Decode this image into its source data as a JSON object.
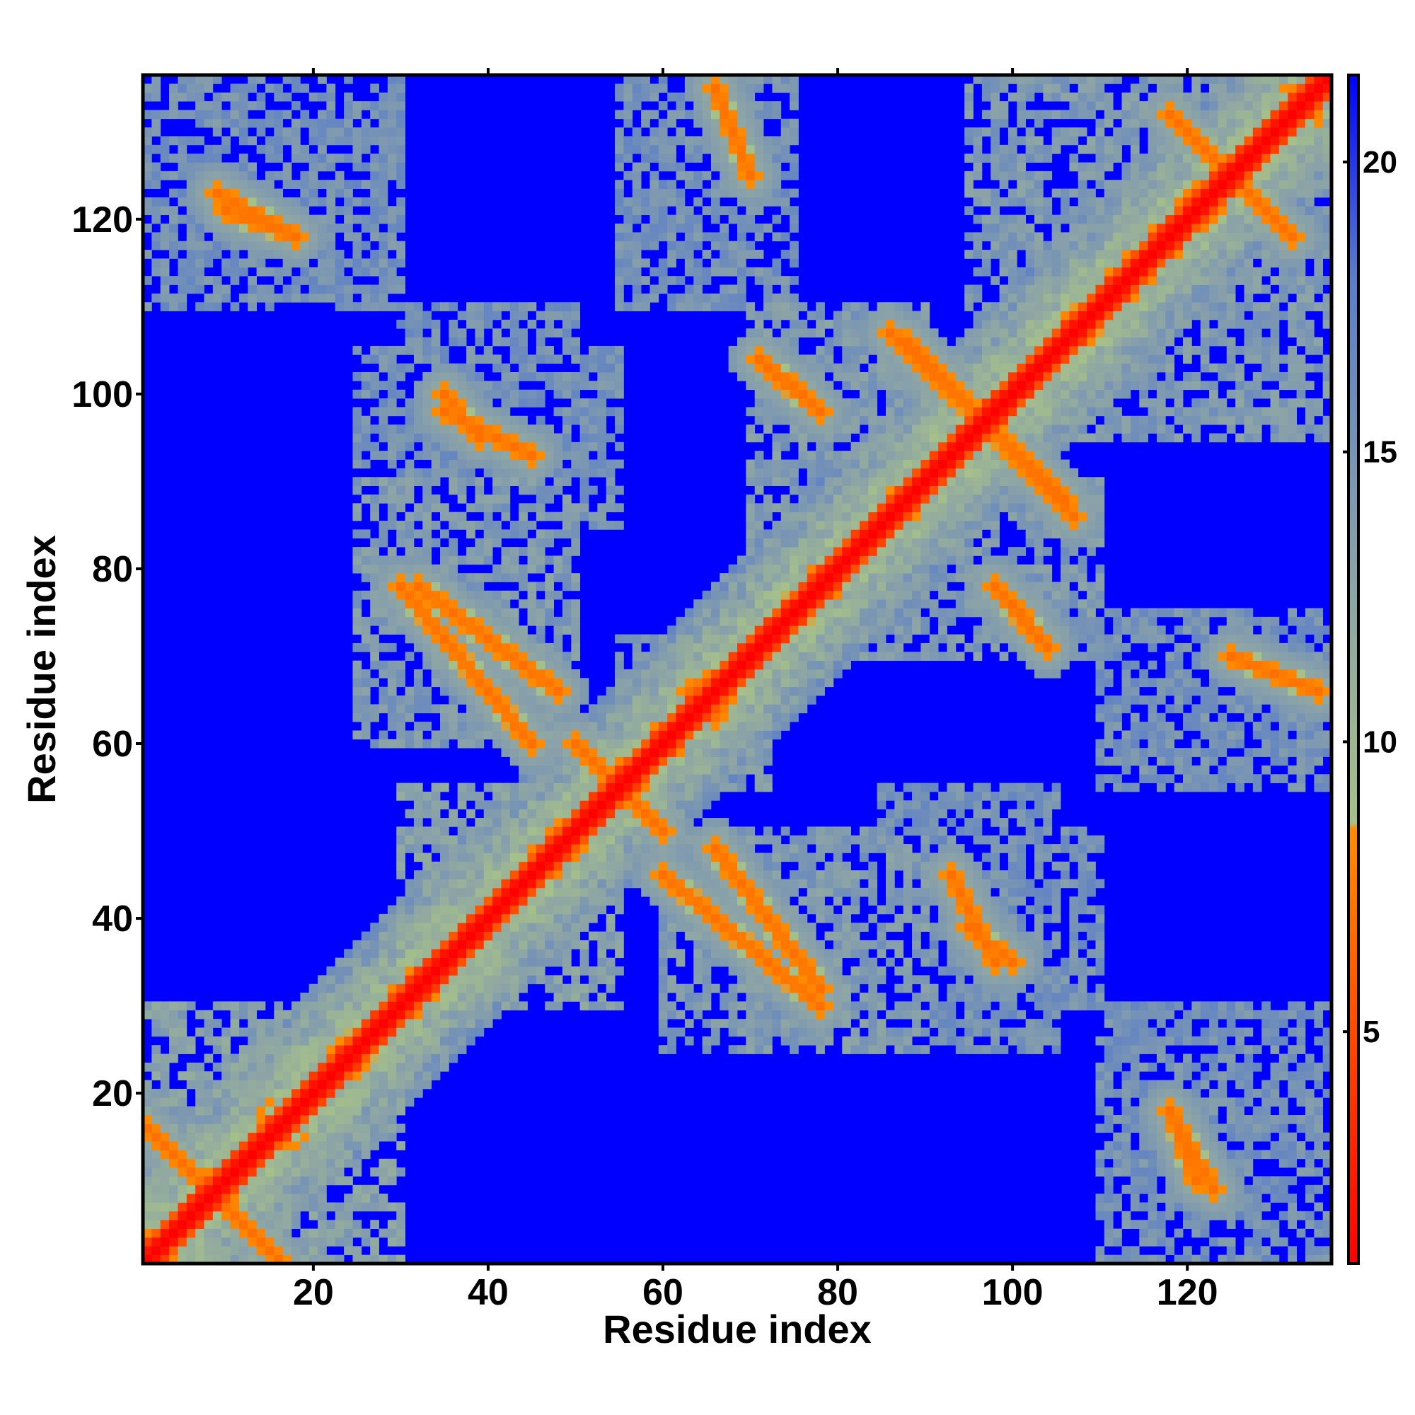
{
  "chart_data": {
    "type": "heatmap",
    "title": "",
    "xlabel": "Residue index",
    "ylabel": "Residue index",
    "xlim": [
      1,
      136
    ],
    "ylim": [
      1,
      136
    ],
    "n_residues": 136,
    "x_ticks": [
      20,
      40,
      60,
      80,
      100,
      120
    ],
    "y_ticks": [
      20,
      40,
      60,
      80,
      100,
      120
    ],
    "colorbar": {
      "range": [
        1,
        21.5
      ],
      "ticks": [
        5,
        10,
        15,
        20
      ],
      "stops": [
        {
          "value": 1,
          "color": "#ff0000"
        },
        {
          "value": 8.5,
          "color": "#ff8c00"
        },
        {
          "value": 8.6,
          "color": "#a6c08a"
        },
        {
          "value": 13,
          "color": "#8aa2a8"
        },
        {
          "value": 18,
          "color": "#5b7ec8"
        },
        {
          "value": 21.5,
          "color": "#0000ff"
        }
      ],
      "background_color": "#0000ff"
    },
    "matrix_description_note": "symmetric residue distance map; diagonal near 0",
    "diagonal_value": 1,
    "contact_regions": [
      {
        "i": [
          1,
          30
        ],
        "j": [
          1,
          30
        ],
        "level": 10
      },
      {
        "i": [
          30,
          55
        ],
        "j": [
          30,
          55
        ],
        "level": 10
      },
      {
        "i": [
          55,
          72
        ],
        "j": [
          55,
          72
        ],
        "level": 11
      },
      {
        "i": [
          70,
          100
        ],
        "j": [
          70,
          100
        ],
        "level": 11
      },
      {
        "i": [
          95,
          136
        ],
        "j": [
          95,
          136
        ],
        "level": 11
      },
      {
        "i": [
          1,
          30
        ],
        "j": [
          110,
          136
        ],
        "level": 12
      },
      {
        "i": [
          25,
          55
        ],
        "j": [
          85,
          105
        ],
        "level": 12
      },
      {
        "i": [
          25,
          45
        ],
        "j": [
          60,
          80
        ],
        "level": 11
      },
      {
        "i": [
          55,
          75
        ],
        "j": [
          110,
          136
        ],
        "level": 12
      },
      {
        "i": [
          60,
          90
        ],
        "j": [
          25,
          50
        ],
        "level": 11
      },
      {
        "i": [
          88,
          110
        ],
        "j": [
          30,
          50
        ],
        "level": 12
      },
      {
        "i": [
          115,
          136
        ],
        "j": [
          1,
          30
        ],
        "level": 12
      },
      {
        "i": [
          115,
          136
        ],
        "j": [
          60,
          75
        ],
        "level": 12
      },
      {
        "i": [
          100,
          110
        ],
        "j": [
          70,
          90
        ],
        "level": 11
      }
    ],
    "close_contacts": [
      {
        "points": [
          [
            1,
            16
          ],
          [
            12,
            5
          ],
          [
            16,
            1
          ]
        ],
        "level": 7
      },
      {
        "points": [
          [
            10,
            121
          ],
          [
            18,
            118
          ]
        ],
        "level": 7
      },
      {
        "points": [
          [
            32,
            78
          ],
          [
            48,
            66
          ]
        ],
        "level": 7
      },
      {
        "points": [
          [
            50,
            60
          ],
          [
            60,
            50
          ]
        ],
        "level": 7
      },
      {
        "points": [
          [
            63,
            66
          ],
          [
            70,
            70
          ]
        ],
        "level": 7
      },
      {
        "points": [
          [
            60,
            45
          ],
          [
            78,
            30
          ]
        ],
        "level": 7
      },
      {
        "points": [
          [
            72,
            103
          ],
          [
            78,
            98
          ]
        ],
        "level": 7
      },
      {
        "points": [
          [
            88,
            106
          ],
          [
            107,
            86
          ]
        ],
        "level": 7
      },
      {
        "points": [
          [
            100,
            76
          ],
          [
            104,
            71
          ]
        ],
        "level": 7
      },
      {
        "points": [
          [
            118,
            18
          ],
          [
            123,
            9
          ]
        ],
        "level": 7
      },
      {
        "points": [
          [
            120,
            130
          ],
          [
            132,
            118
          ]
        ],
        "level": 7
      },
      {
        "points": [
          [
            35,
            98
          ],
          [
            45,
            93
          ]
        ],
        "level": 7
      },
      {
        "points": [
          [
            95,
            39
          ],
          [
            100,
            35
          ]
        ],
        "level": 7
      },
      {
        "points": [
          [
            125,
            70
          ],
          [
            135,
            66
          ]
        ],
        "level": 7
      }
    ]
  }
}
